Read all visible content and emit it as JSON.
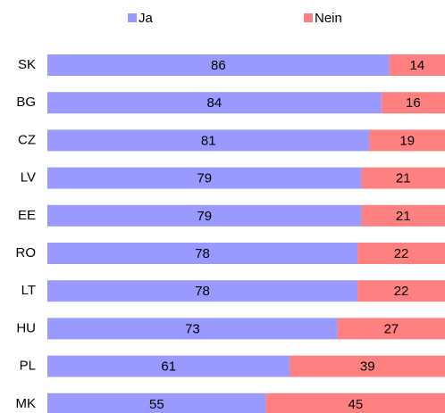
{
  "chart_data": {
    "type": "stacked_bar",
    "orientation": "horizontal",
    "categories": [
      "SK",
      "BG",
      "CZ",
      "LV",
      "EE",
      "RO",
      "LT",
      "HU",
      "PL",
      "MK"
    ],
    "series": [
      {
        "name": "Ja",
        "color": "#9999ff",
        "values": [
          86,
          84,
          81,
          79,
          79,
          78,
          78,
          73,
          61,
          55
        ]
      },
      {
        "name": "Nein",
        "color": "#ff8080",
        "values": [
          14,
          16,
          19,
          21,
          21,
          22,
          22,
          27,
          39,
          45
        ]
      }
    ],
    "legend": "top"
  }
}
